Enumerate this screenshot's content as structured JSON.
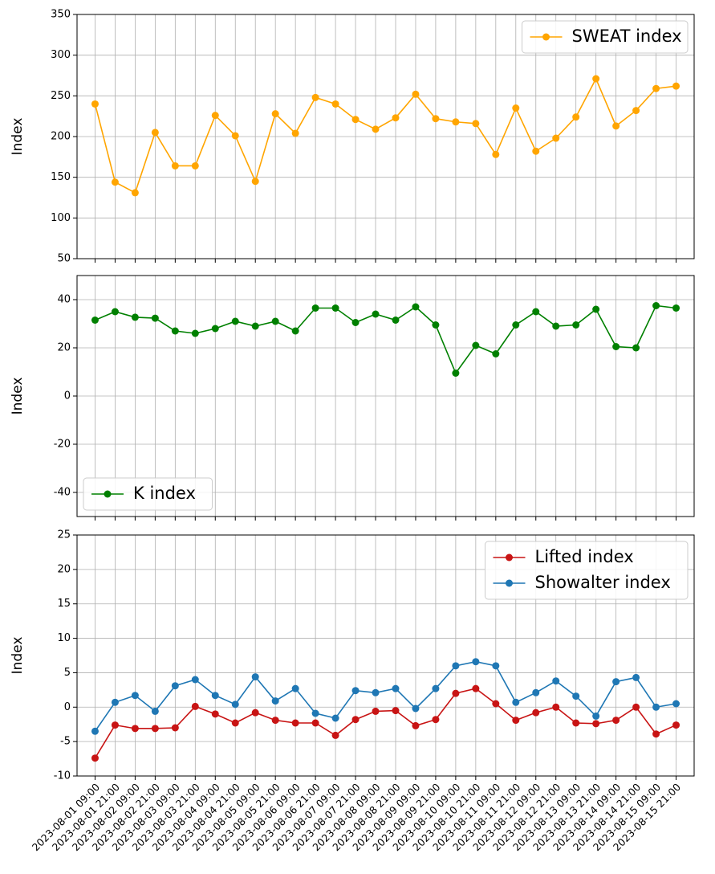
{
  "chart_data": [
    {
      "type": "line",
      "ylabel": "Index",
      "ylim": [
        50,
        350
      ],
      "yticks": [
        50,
        100,
        150,
        200,
        250,
        300,
        350
      ],
      "grid": true,
      "legend": "upper right",
      "series": [
        {
          "name": "SWEAT index",
          "color": "#ffa500",
          "values": [
            240,
            144,
            131,
            205,
            164,
            164,
            226,
            201,
            145,
            228,
            204,
            248,
            240,
            221,
            209,
            223,
            252,
            222,
            218,
            216,
            178,
            235,
            182,
            198,
            224,
            271,
            213,
            232,
            259,
            262
          ]
        }
      ]
    },
    {
      "type": "line",
      "ylabel": "Index",
      "ylim": [
        -50,
        50
      ],
      "yticks": [
        -40,
        -20,
        0,
        20,
        40
      ],
      "grid": true,
      "legend": "lower left",
      "series": [
        {
          "name": "K index",
          "color": "#008000",
          "values": [
            31.5,
            35,
            32.7,
            32.3,
            27,
            26,
            28,
            31,
            29,
            31,
            27,
            36.5,
            36.5,
            30.5,
            34,
            31.5,
            37,
            29.5,
            9.5,
            21,
            17.5,
            29.5,
            35,
            29,
            29.5,
            36,
            20.5,
            20,
            37.5,
            36.5
          ]
        }
      ]
    },
    {
      "type": "line",
      "ylabel": "Index",
      "ylim": [
        -10,
        25
      ],
      "yticks": [
        -10,
        -5,
        0,
        5,
        10,
        15,
        20,
        25
      ],
      "grid": true,
      "legend": "upper right",
      "categories": [
        "2023-08-01 09:00",
        "2023-08-01 21:00",
        "2023-08-02 09:00",
        "2023-08-02 21:00",
        "2023-08-03 09:00",
        "2023-08-03 21:00",
        "2023-08-04 09:00",
        "2023-08-04 21:00",
        "2023-08-05 09:00",
        "2023-08-05 21:00",
        "2023-08-06 09:00",
        "2023-08-06 21:00",
        "2023-08-07 09:00",
        "2023-08-07 21:00",
        "2023-08-08 09:00",
        "2023-08-08 21:00",
        "2023-08-09 09:00",
        "2023-08-09 21:00",
        "2023-08-10 09:00",
        "2023-08-10 21:00",
        "2023-08-11 09:00",
        "2023-08-11 21:00",
        "2023-08-12 09:00",
        "2023-08-12 21:00",
        "2023-08-13 09:00",
        "2023-08-13 21:00",
        "2023-08-14 09:00",
        "2023-08-14 21:00",
        "2023-08-15 09:00",
        "2023-08-15 21:00"
      ],
      "series": [
        {
          "name": "Lifted index",
          "color": "#c81414",
          "values": [
            -7.4,
            -2.6,
            -3.1,
            -3.1,
            -3,
            0.1,
            -1,
            -2.3,
            -0.8,
            -1.9,
            -2.3,
            -2.3,
            -4.1,
            -1.8,
            -0.6,
            -0.5,
            -2.7,
            -1.8,
            2,
            2.7,
            0.5,
            -1.9,
            -0.8,
            0,
            -2.3,
            -2.4,
            -1.9,
            0,
            -3.9,
            -2.6
          ]
        },
        {
          "name": "Showalter index",
          "color": "#1f77b4",
          "values": [
            -3.5,
            0.7,
            1.7,
            -0.6,
            3.1,
            4,
            1.7,
            0.4,
            4.4,
            0.9,
            2.7,
            -0.9,
            -1.6,
            2.4,
            2.1,
            2.7,
            -0.2,
            2.7,
            6,
            6.6,
            6,
            0.7,
            2.1,
            3.8,
            1.6,
            -1.3,
            3.7,
            4.3,
            0,
            0.5
          ]
        }
      ]
    }
  ]
}
